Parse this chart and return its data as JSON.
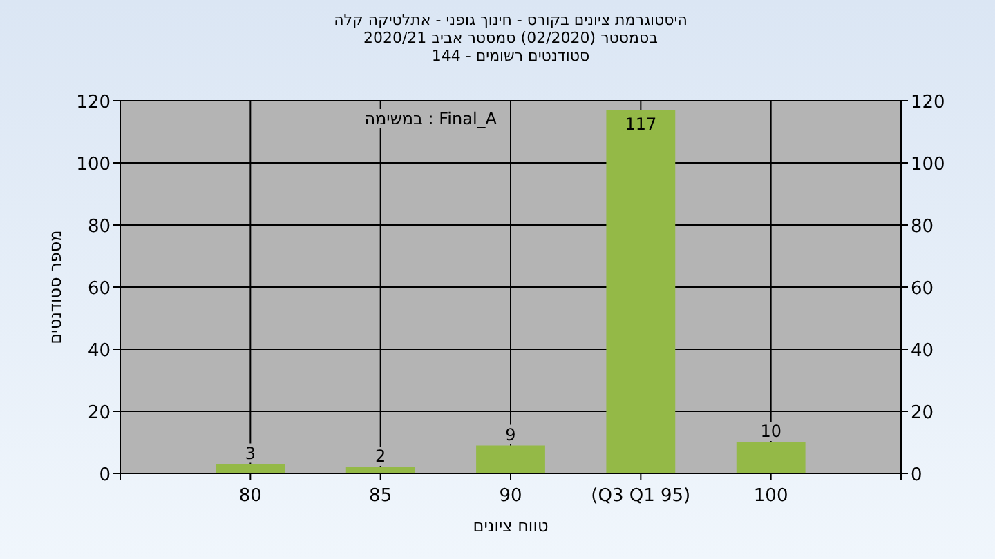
{
  "chart_data": {
    "type": "bar",
    "title": "היסטוגרמת ציונים בקורס - חינוך גופני - אתלטיקה קלה",
    "subtitle": "בסמסטר (02/2020) סמסטר אביב 2020/21\nסטודנטים רשומים - 144",
    "xlabel": "טווח ציונים",
    "ylabel": "מספר סטודנטים",
    "annotations": [
      "במשימה : Final_A"
    ],
    "categories": [
      "80",
      "85",
      "90",
      "(Q3 Q1 95)",
      "100"
    ],
    "values": [
      3,
      2,
      9,
      117,
      10
    ],
    "color": "#94b947",
    "data_labels": true,
    "ylim": [
      0,
      120
    ],
    "yticks": [
      0,
      20,
      40,
      60,
      80,
      100,
      120
    ],
    "y2lim": [
      0,
      120
    ],
    "y2ticks": [
      0,
      20,
      40,
      60,
      80,
      100,
      120
    ],
    "grid": true
  }
}
